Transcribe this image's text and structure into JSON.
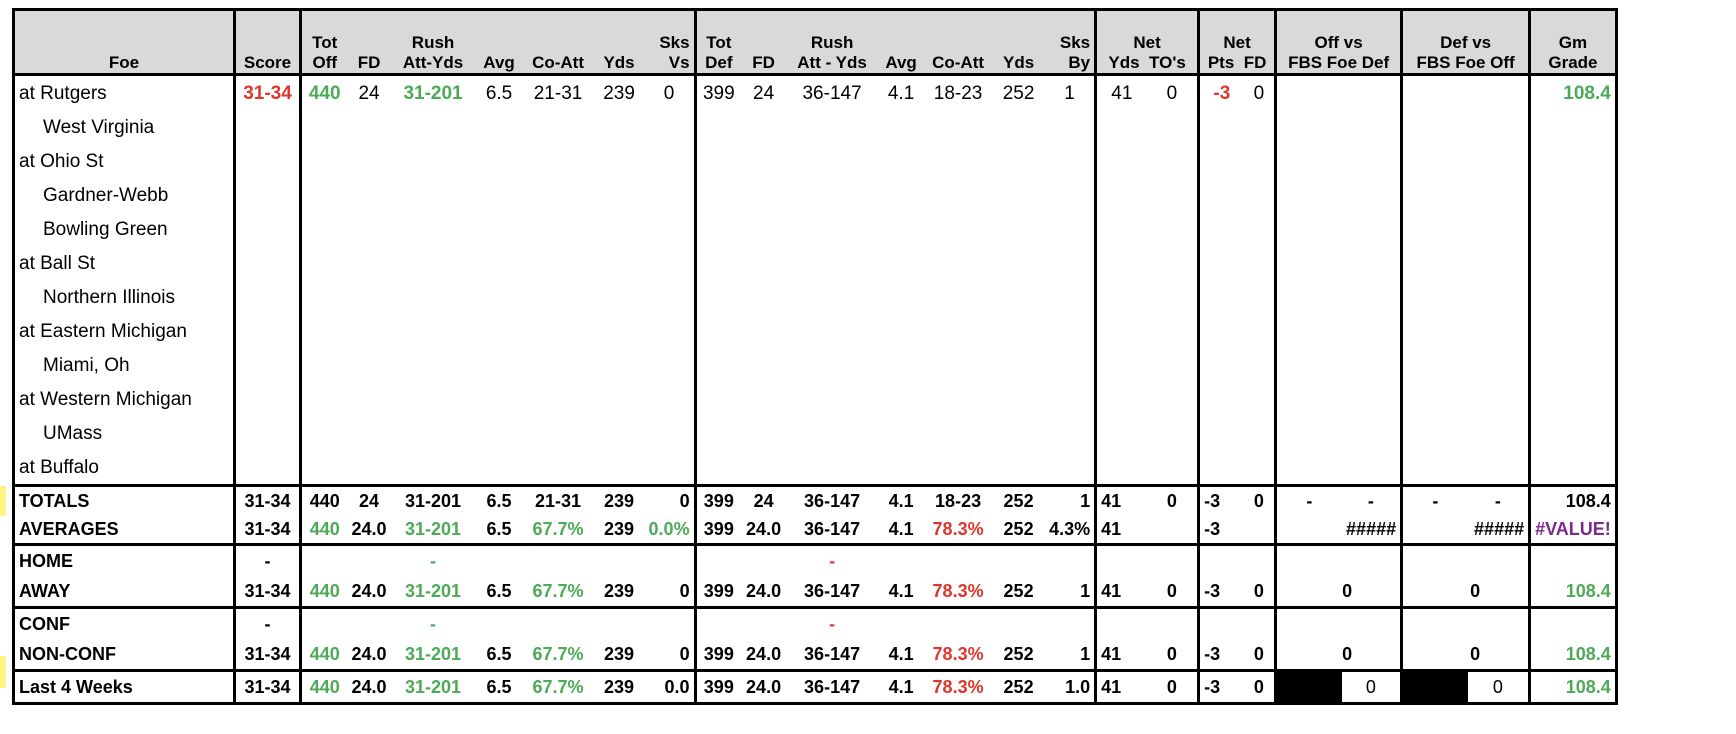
{
  "headers": {
    "foe": "Foe",
    "score": "Score",
    "tot_off": [
      "Tot",
      "Off"
    ],
    "fd": "FD",
    "rush": [
      "Rush",
      "Att-Yds"
    ],
    "avg": "Avg",
    "co_att": "Co-Att",
    "yds": "Yds",
    "sks_vs": [
      "Sks",
      "Vs"
    ],
    "tot_def": [
      "Tot",
      "Def"
    ],
    "fd2": "FD",
    "rush2": [
      "Rush",
      "Att - Yds"
    ],
    "avg2": "Avg",
    "co_att2": "Co-Att",
    "yds2": "Yds",
    "sks_by": [
      "Sks",
      "By"
    ],
    "net1": [
      "Net",
      "Yds",
      "TO's"
    ],
    "net2": [
      "Net",
      "Pts",
      "FD"
    ],
    "off_vs": [
      "Off vs",
      "FBS Foe Def"
    ],
    "def_vs": [
      "Def vs",
      "FBS Foe Off"
    ],
    "gm_grade": [
      "Gm",
      "Grade"
    ]
  },
  "games": [
    {
      "foe": "at Rutgers",
      "score": "31-34",
      "tot_off": "440",
      "fd": "24",
      "rush": "31-201",
      "avg": "6.5",
      "co_att": "21-31",
      "yds": "239",
      "sks_vs": "0",
      "tot_def": "399",
      "fd2": "24",
      "rush2": "36-147",
      "avg2": "4.1",
      "co_att2": "18-23",
      "yds2": "252",
      "sks_by": "1",
      "net_yds": "41",
      "net_to": "0",
      "net_pts": "-3",
      "net_fd": "0",
      "gm_grade": "108.4"
    },
    {
      "foe": "West Virginia"
    },
    {
      "foe": "at Ohio St"
    },
    {
      "foe": "Gardner-Webb"
    },
    {
      "foe": "Bowling Green"
    },
    {
      "foe": "at Ball St"
    },
    {
      "foe": "Northern Illinois"
    },
    {
      "foe": "at Eastern Michigan"
    },
    {
      "foe": "Miami, Oh"
    },
    {
      "foe": "at Western Michigan"
    },
    {
      "foe": "UMass"
    },
    {
      "foe": "at Buffalo"
    }
  ],
  "totals": {
    "label": "TOTALS",
    "score": "31-34",
    "tot_off": "440",
    "fd": "24",
    "rush": "31-201",
    "avg": "6.5",
    "co_att": "21-31",
    "yds": "239",
    "sks_vs": "0",
    "tot_def": "399",
    "fd2": "24",
    "rush2": "36-147",
    "avg2": "4.1",
    "co_att2": "18-23",
    "yds2": "252",
    "sks_by": "1",
    "net_yds": "41",
    "net_to": "0",
    "net_pts": "-3",
    "net_fd": "0",
    "off_a": "-",
    "off_b": "-",
    "def_a": "-",
    "def_b": "-",
    "gm_grade": "108.4"
  },
  "averages": {
    "label": "AVERAGES",
    "score": "31-34",
    "tot_off": "440",
    "fd": "24.0",
    "rush": "31-201",
    "avg": "6.5",
    "co_att": "67.7%",
    "yds": "239",
    "sks_vs": "0.0%",
    "tot_def": "399",
    "fd2": "24.0",
    "rush2": "36-147",
    "avg2": "4.1",
    "co_att2": "78.3%",
    "yds2": "252",
    "sks_by": "4.3%",
    "net_yds": "41",
    "net_pts": "-3",
    "off_vs": "#####",
    "def_vs": "#####",
    "gm_grade": "#VALUE!"
  },
  "home": {
    "label": "HOME",
    "score": "-",
    "rush": "-",
    "rush2": "-"
  },
  "away": {
    "label": "AWAY",
    "score": "31-34",
    "tot_off": "440",
    "fd": "24.0",
    "rush": "31-201",
    "avg": "6.5",
    "co_att": "67.7%",
    "yds": "239",
    "sks_vs": "0",
    "tot_def": "399",
    "fd2": "24.0",
    "rush2": "36-147",
    "avg2": "4.1",
    "co_att2": "78.3%",
    "yds2": "252",
    "sks_by": "1",
    "net_yds": "41",
    "net_to": "0",
    "net_pts": "-3",
    "net_fd": "0",
    "off_vs": "0",
    "def_vs": "0",
    "gm_grade": "108.4"
  },
  "conf": {
    "label": "CONF",
    "score": "-",
    "rush": "-",
    "rush2": "-"
  },
  "nonconf": {
    "label": "NON-CONF",
    "score": "31-34",
    "tot_off": "440",
    "fd": "24.0",
    "rush": "31-201",
    "avg": "6.5",
    "co_att": "67.7%",
    "yds": "239",
    "sks_vs": "0",
    "tot_def": "399",
    "fd2": "24.0",
    "rush2": "36-147",
    "avg2": "4.1",
    "co_att2": "78.3%",
    "yds2": "252",
    "sks_by": "1",
    "net_yds": "41",
    "net_to": "0",
    "net_pts": "-3",
    "net_fd": "0",
    "off_vs": "0",
    "def_vs": "0",
    "gm_grade": "108.4"
  },
  "last4": {
    "label": "Last 4 Weeks",
    "score": "31-34",
    "tot_off": "440",
    "fd": "24.0",
    "rush": "31-201",
    "avg": "6.5",
    "co_att": "67.7%",
    "yds": "239",
    "sks_vs": "0.0",
    "tot_def": "399",
    "fd2": "24.0",
    "rush2": "36-147",
    "avg2": "4.1",
    "co_att2": "78.3%",
    "yds2": "252",
    "sks_by": "1.0",
    "net_yds": "41",
    "net_to": "0",
    "net_pts": "-3",
    "net_fd": "0",
    "off_vs": "0",
    "def_vs": "0",
    "gm_grade": "108.4"
  },
  "colors": {
    "good": "#4daa57",
    "bad": "#e0362c",
    "error": "#7b2a8b",
    "header_bg": "#d9d9d9",
    "marker": "#fbf584"
  }
}
